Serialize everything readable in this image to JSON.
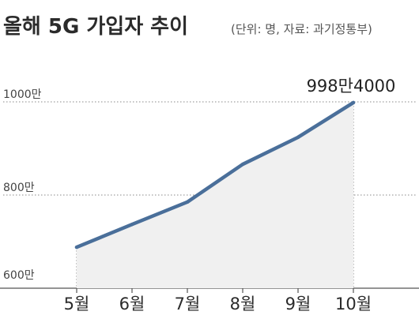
{
  "chart_data": {
    "type": "line",
    "title": "올해 5G 가입자 추이",
    "subtitle": "(단위: 명, 자료: 과기정통부)",
    "categories": [
      "5월",
      "6월",
      "7월",
      "8월",
      "9월",
      "10월"
    ],
    "series": [
      {
        "values": [
          6880000,
          7370000,
          7850000,
          8660000,
          9240000,
          9984000
        ]
      }
    ],
    "ylim": [
      6000000,
      10000000
    ],
    "yticks": [
      {
        "value": 6000000,
        "label": "600만"
      },
      {
        "value": 8000000,
        "label": "800만"
      },
      {
        "value": 10000000,
        "label": "1000만"
      }
    ],
    "annotations": [
      {
        "category": "10월",
        "text": "998만4000"
      }
    ],
    "colors": {
      "line": "#4a6f9a",
      "area": "#f0f0f0",
      "grid": "#888888"
    },
    "grid": true
  }
}
